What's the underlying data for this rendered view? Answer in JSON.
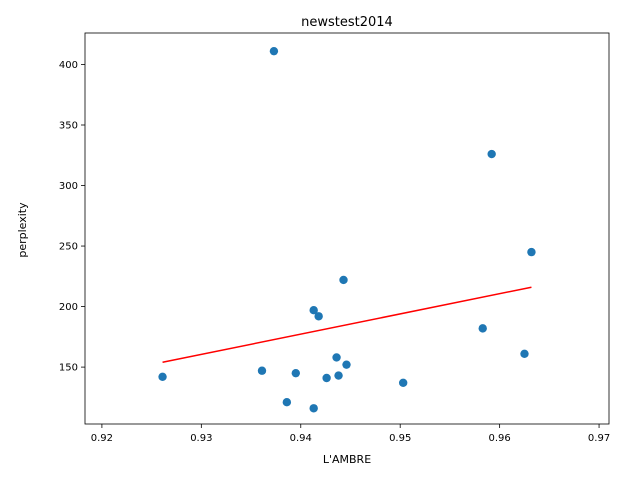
{
  "chart_data": {
    "type": "scatter",
    "title": "newstest2014",
    "xlabel": "L'AMBRE",
    "ylabel": "perplexity",
    "xlim": [
      0.9183,
      0.971
    ],
    "ylim": [
      103,
      426
    ],
    "xticks": [
      0.92,
      0.93,
      0.94,
      0.95,
      0.96,
      0.97
    ],
    "xtick_labels": [
      "0.92",
      "0.93",
      "0.94",
      "0.95",
      "0.96",
      "0.97"
    ],
    "yticks": [
      150,
      200,
      250,
      300,
      350,
      400
    ],
    "ytick_labels": [
      "150",
      "200",
      "250",
      "300",
      "350",
      "400"
    ],
    "grid": false,
    "series": [
      {
        "marker": "circle",
        "color": "#1f77b4",
        "x": [
          0.9373,
          0.9592,
          0.9632,
          0.9443,
          0.9413,
          0.9418,
          0.9583,
          0.9625,
          0.9436,
          0.9446,
          0.9261,
          0.9361,
          0.9395,
          0.9426,
          0.9438,
          0.9503,
          0.9386,
          0.9413
        ],
        "y": [
          411,
          326,
          245,
          222,
          197,
          192,
          182,
          161,
          158,
          152,
          142,
          147,
          145,
          141,
          143,
          137,
          121,
          116
        ]
      },
      {
        "type": "line",
        "color": "#ff0000",
        "x": [
          0.9261,
          0.9632
        ],
        "y": [
          154,
          216
        ]
      }
    ]
  }
}
